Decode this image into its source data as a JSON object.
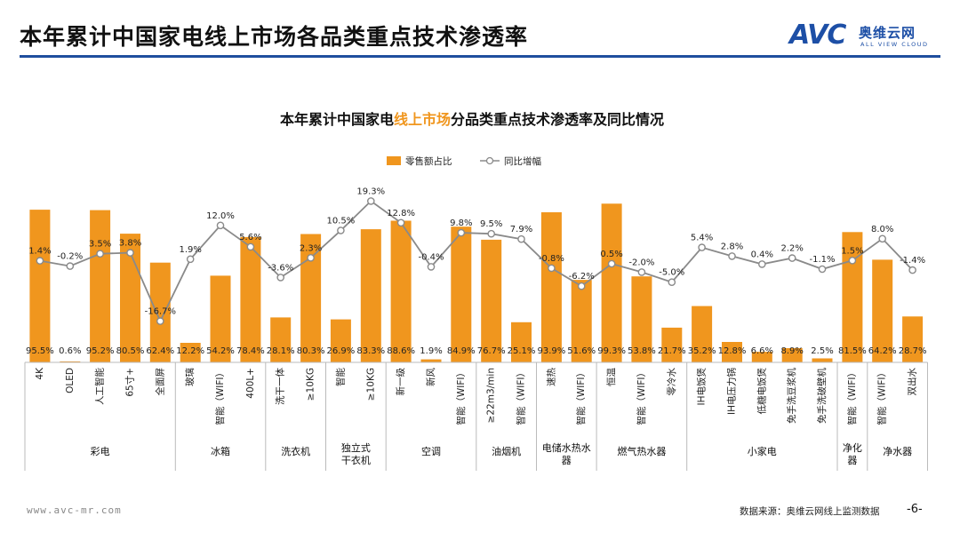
{
  "header": {
    "title": "本年累计中国家电线上市场各品类重点技术渗透率",
    "logo_mark": "AVC",
    "logo_cn": "奥维云网",
    "logo_en": "ALL VIEW CLOUD"
  },
  "footer": {
    "url": "www.avc-mr.com",
    "source": "数据来源：奥维云网线上监测数据",
    "page": "-6-"
  },
  "colors": {
    "bar": "#f0961e",
    "line": "#8a8a8a",
    "accent": "#f0961e",
    "header_rule": "#1f4e9e",
    "logo": "#1d4fa6"
  },
  "chart_data": {
    "type": "bar",
    "title_prefix": "本年累计中国家电",
    "title_highlight": "线上市场",
    "title_suffix": "分品类重点技术渗透率及同比情况",
    "legend": {
      "bar": "零售额占比",
      "line": "同比增幅"
    },
    "legend_position": "top",
    "series": [
      {
        "name": "零售额占比",
        "type": "bar",
        "unit": "%"
      },
      {
        "name": "同比增幅",
        "type": "line",
        "unit": "%"
      }
    ],
    "categories": [
      "4K",
      "OLED",
      "人工智能",
      "65寸+",
      "全面屏",
      "玻璃",
      "智能（WIFI）",
      "400L+",
      "洗干一体",
      "≥10KG",
      "智能",
      "≥10KG",
      "新一级",
      "新风",
      "智能（WIFI）",
      "≥22m3/min",
      "智能（WIFI）",
      "速热",
      "智能（WIFI）",
      "恒温",
      "智能（WIFI）",
      "零冷水",
      "IH电饭煲",
      "IH电压力锅",
      "低糖电饭煲",
      "免手洗豆浆机",
      "免手洗破壁机",
      "智能（WIFI）",
      "智能（WIFI）",
      "双出水"
    ],
    "bar_values": [
      95.5,
      0.6,
      95.2,
      80.5,
      62.4,
      12.2,
      54.2,
      78.4,
      28.1,
      80.3,
      26.9,
      83.3,
      88.6,
      1.9,
      84.9,
      76.7,
      25.1,
      93.9,
      51.6,
      99.3,
      53.8,
      21.7,
      35.2,
      12.8,
      6.6,
      8.9,
      2.5,
      81.5,
      64.2,
      28.7
    ],
    "bar_labels": [
      "95.5%",
      "0.6%",
      "95.2%",
      "80.5%",
      "62.4%",
      "12.2%",
      "54.2%",
      "78.4%",
      "28.1%",
      "80.3%",
      "26.9%",
      "83.3%",
      "88.6%",
      "1.9%",
      "84.9%",
      "76.7%",
      "25.1%",
      "93.9%",
      "51.6%",
      "99.3%",
      "53.8%",
      "21.7%",
      "35.2%",
      "12.8%",
      "6.6%",
      "8.9%",
      "2.5%",
      "81.5%",
      "64.2%",
      "28.7%"
    ],
    "line_values": [
      1.4,
      -0.2,
      3.5,
      3.8,
      -16.7,
      1.9,
      12.0,
      5.6,
      -3.6,
      2.3,
      10.5,
      19.3,
      12.8,
      -0.4,
      9.8,
      9.5,
      7.9,
      -0.8,
      -6.2,
      0.5,
      -2.0,
      -5.0,
      5.4,
      2.8,
      0.4,
      2.2,
      -1.1,
      1.5,
      8.0,
      -1.4
    ],
    "line_labels": [
      "1.4%",
      "-0.2%",
      "3.5%",
      "3.8%",
      "-16.7%",
      "1.9%",
      "12.0%",
      "5.6%",
      "-3.6%",
      "2.3%",
      "10.5%",
      "19.3%",
      "12.8%",
      "-0.4%",
      "9.8%",
      "9.5%",
      "7.9%",
      "-0.8%",
      "-6.2%",
      "0.5%",
      "-2.0%",
      "-5.0%",
      "5.4%",
      "2.8%",
      "0.4%",
      "2.2%",
      "-1.1%",
      "1.5%",
      "8.0%",
      "-1.4%"
    ],
    "groups": [
      {
        "label": "彩电",
        "count": 5
      },
      {
        "label": "冰箱",
        "count": 3
      },
      {
        "label": "洗衣机",
        "count": 2
      },
      {
        "label": "独立式\n干衣机",
        "count": 2
      },
      {
        "label": "空调",
        "count": 3
      },
      {
        "label": "油烟机",
        "count": 2
      },
      {
        "label": "电储水热水\n器",
        "count": 2
      },
      {
        "label": "燃气热水器",
        "count": 3
      },
      {
        "label": "小家电",
        "count": 5
      },
      {
        "label": "净化\n器",
        "count": 1
      },
      {
        "label": "净水器",
        "count": 2
      }
    ],
    "bar_ylim": [
      0,
      100
    ],
    "line_ylim": [
      -20,
      25
    ],
    "grid": false
  }
}
